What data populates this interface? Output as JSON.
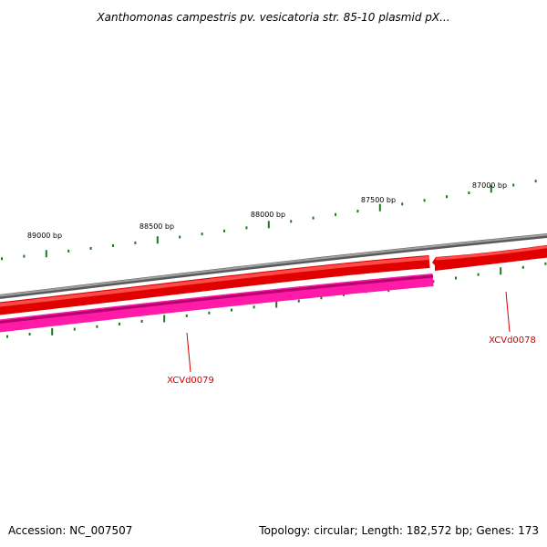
{
  "title": "Xanthomonas campestris pv. vesicatoria str. 85-10 plasmid pX...",
  "footer": {
    "accession": "Accession: NC_007507",
    "summary": "Topology: circular; Length: 182,572 bp; Genes: 173"
  },
  "ruler_labels": [
    "89000 bp",
    "88500 bp",
    "88000 bp",
    "87500 bp",
    "87000 bp"
  ],
  "genes": [
    {
      "label": "XCVd0079",
      "color": "#d00000"
    },
    {
      "label": "XCVd0078",
      "color": "#d00000"
    }
  ],
  "colors": {
    "backbone": "#7f7f7f",
    "forward_gene": "#ff0000",
    "reverse_gene": "#ff1aa8",
    "tick": "#1a7a1a",
    "gene_label": "#d00000"
  }
}
